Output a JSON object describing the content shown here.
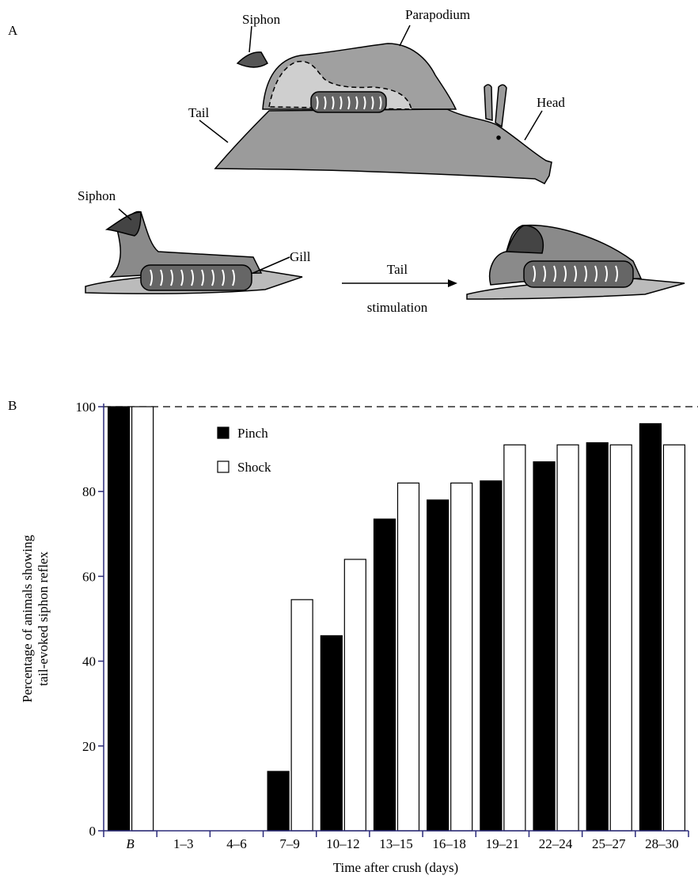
{
  "diagram": {
    "panel_label": "A",
    "labels": {
      "siphon_top": "Siphon",
      "parapodium": "Parapodium",
      "tail": "Tail",
      "head": "Head",
      "siphon_bottom": "Siphon",
      "gill": "Gill",
      "arrow_top": "Tail",
      "arrow_bottom": "stimulation"
    }
  },
  "chart_data": {
    "type": "bar",
    "panel_label": "B",
    "xlabel": "Time after crush (days)",
    "ylabel": [
      "Percentage of animals showing",
      "tail-evoked siphon reflex"
    ],
    "categories": [
      "B",
      "1–3",
      "4–6",
      "7–9",
      "10–12",
      "13–15",
      "16–18",
      "19–21",
      "22–24",
      "25–27",
      "28–30"
    ],
    "series": [
      {
        "name": "Pinch",
        "color": "#000000",
        "values": [
          100,
          0,
          0,
          14,
          46,
          73.5,
          78,
          82.5,
          87,
          91.5,
          96
        ]
      },
      {
        "name": "Shock",
        "color": "#ffffff",
        "values": [
          100,
          0,
          0,
          54.5,
          64,
          82,
          82,
          91,
          91,
          91,
          91
        ]
      }
    ],
    "ylim": [
      0,
      100
    ],
    "yticks": [
      0,
      20,
      40,
      60,
      80,
      100
    ],
    "reference_line": 100,
    "grid": false
  }
}
